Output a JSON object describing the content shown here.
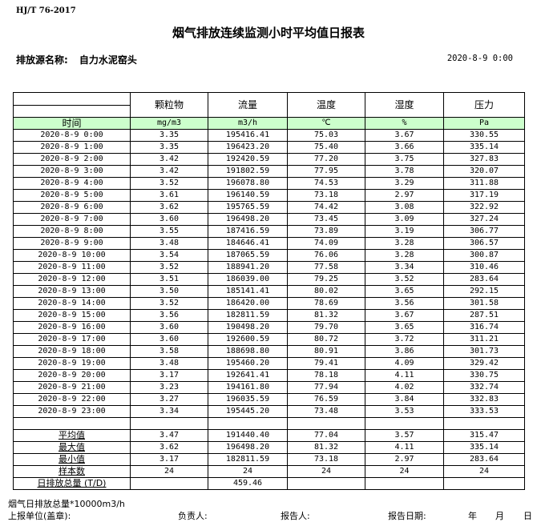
{
  "standard": "HJ/T  76-2017",
  "title": "烟气排放连续监测小时平均值日报表",
  "source_label": "排放源名称:",
  "source_name": "自力水泥窑头",
  "report_datetime": "2020-8-9 0:00",
  "columns": [
    {
      "name": "颗粒物",
      "unit": "mg/m3"
    },
    {
      "name": "流量",
      "unit": "m3/h"
    },
    {
      "name": "温度",
      "unit": "℃"
    },
    {
      "name": "湿度",
      "unit": "%"
    },
    {
      "name": "压力",
      "unit": "Pa"
    }
  ],
  "time_header": "时间",
  "rows": [
    [
      "2020-8-9 0:00",
      "3.35",
      "195416.41",
      "75.03",
      "3.67",
      "330.55"
    ],
    [
      "2020-8-9 1:00",
      "3.35",
      "196423.20",
      "75.40",
      "3.66",
      "335.14"
    ],
    [
      "2020-8-9 2:00",
      "3.42",
      "192420.59",
      "77.20",
      "3.75",
      "327.83"
    ],
    [
      "2020-8-9 3:00",
      "3.42",
      "191802.59",
      "77.95",
      "3.78",
      "320.07"
    ],
    [
      "2020-8-9 4:00",
      "3.52",
      "196078.80",
      "74.53",
      "3.29",
      "311.88"
    ],
    [
      "2020-8-9 5:00",
      "3.61",
      "196140.59",
      "73.18",
      "2.97",
      "317.19"
    ],
    [
      "2020-8-9 6:00",
      "3.62",
      "195765.59",
      "74.42",
      "3.08",
      "322.92"
    ],
    [
      "2020-8-9 7:00",
      "3.60",
      "196498.20",
      "73.45",
      "3.09",
      "327.24"
    ],
    [
      "2020-8-9 8:00",
      "3.55",
      "187416.59",
      "73.89",
      "3.19",
      "306.77"
    ],
    [
      "2020-8-9 9:00",
      "3.48",
      "184646.41",
      "74.09",
      "3.28",
      "306.57"
    ],
    [
      "2020-8-9 10:00",
      "3.54",
      "187065.59",
      "76.06",
      "3.28",
      "300.87"
    ],
    [
      "2020-8-9 11:00",
      "3.52",
      "188941.20",
      "77.58",
      "3.34",
      "310.46"
    ],
    [
      "2020-8-9 12:00",
      "3.51",
      "186039.00",
      "79.25",
      "3.52",
      "283.64"
    ],
    [
      "2020-8-9 13:00",
      "3.50",
      "185141.41",
      "80.02",
      "3.65",
      "292.15"
    ],
    [
      "2020-8-9 14:00",
      "3.52",
      "186420.00",
      "78.69",
      "3.56",
      "301.58"
    ],
    [
      "2020-8-9 15:00",
      "3.56",
      "182811.59",
      "81.32",
      "3.67",
      "287.51"
    ],
    [
      "2020-8-9 16:00",
      "3.60",
      "190498.20",
      "79.70",
      "3.65",
      "316.74"
    ],
    [
      "2020-8-9 17:00",
      "3.60",
      "192600.59",
      "80.72",
      "3.72",
      "311.21"
    ],
    [
      "2020-8-9 18:00",
      "3.58",
      "188698.80",
      "80.91",
      "3.86",
      "301.73"
    ],
    [
      "2020-8-9 19:00",
      "3.48",
      "195460.20",
      "79.41",
      "4.09",
      "329.42"
    ],
    [
      "2020-8-9 20:00",
      "3.17",
      "192641.41",
      "78.18",
      "4.11",
      "330.75"
    ],
    [
      "2020-8-9 21:00",
      "3.23",
      "194161.80",
      "77.94",
      "4.02",
      "332.74"
    ],
    [
      "2020-8-9 22:00",
      "3.27",
      "196035.59",
      "76.59",
      "3.84",
      "332.83"
    ],
    [
      "2020-8-9 23:00",
      "3.34",
      "195445.20",
      "73.48",
      "3.53",
      "333.53"
    ]
  ],
  "summary": [
    [
      "平均值",
      "3.47",
      "191440.40",
      "77.04",
      "3.57",
      "315.47"
    ],
    [
      "最大值",
      "3.62",
      "196498.20",
      "81.32",
      "4.11",
      "335.14"
    ],
    [
      "最小值",
      "3.17",
      "182811.59",
      "73.18",
      "2.97",
      "283.64"
    ],
    [
      "样本数",
      "24",
      "24",
      "24",
      "24",
      "24"
    ],
    [
      "日排放总量 (T/D)",
      "",
      "459.46",
      "",
      "",
      ""
    ]
  ],
  "note": "烟气日排放总量*10000m3/h",
  "footer": {
    "unit_label": "上报单位(盖章):",
    "responsible_label": "负责人:",
    "reporter_label": "报告人:",
    "report_date_label": "报告日期:",
    "year": "年",
    "month": "月",
    "day": "日"
  }
}
